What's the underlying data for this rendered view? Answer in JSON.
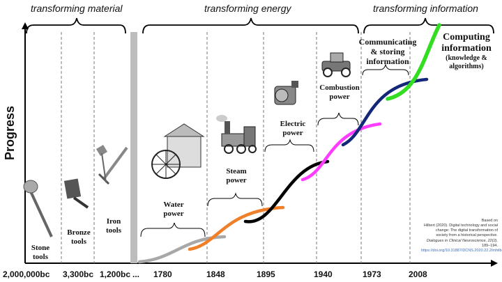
{
  "phases": {
    "material": "transforming material",
    "energy": "transforming energy",
    "information": "transforming information"
  },
  "y_axis_label": "Progress",
  "x_ticks": [
    "2,000,000bc",
    "3,300bc",
    "1,200bc",
    "...",
    "1780",
    "1848",
    "1895",
    "1940",
    "1973",
    "2008"
  ],
  "eras": {
    "stone": [
      "Stone",
      "tools"
    ],
    "bronze": [
      "Bronze",
      "tools"
    ],
    "iron": [
      "Iron",
      "tools"
    ],
    "water": [
      "Water",
      "power"
    ],
    "steam": [
      "Steam",
      "power"
    ],
    "electric": [
      "Electric",
      "power"
    ],
    "combustion": [
      "Combustion",
      "power"
    ],
    "communicating": [
      "Communicating",
      "& storing",
      "information"
    ],
    "computing": [
      "Computing",
      "information"
    ],
    "computing_sub": [
      "(knowledge &",
      "algorithms)"
    ]
  },
  "icons": [
    "stone-axe-icon",
    "bronze-tool-icon",
    "iron-sword-icon",
    "water-wheel-icon",
    "steam-locomotive-icon",
    "electric-dynamo-icon",
    "vintage-car-icon"
  ],
  "citation": {
    "line1": "Based on",
    "line2": "Hilbert (2020). Digital technology and social",
    "line3": "change: The digital transformation of",
    "line4": "society from a historical perspective.",
    "journal": "Dialogues in Clinical Neuroscience, 22(2),",
    "pages": "189–194.",
    "url": "https://doi.org/10.31887/DCNS.2020.22.2/mhilbert"
  },
  "colors": {
    "water": "#a8a8a8",
    "steam": "#f07f2a",
    "electric": "#000000",
    "combustion": "#ff3dff",
    "communicating": "#14287a",
    "computing": "#33dd22",
    "separator": "#b8b8b8"
  }
}
